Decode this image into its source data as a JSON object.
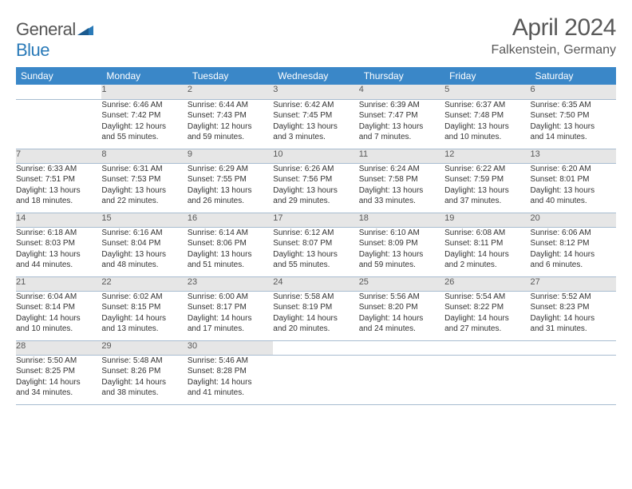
{
  "logo": {
    "text1": "General",
    "text2": "Blue"
  },
  "title": "April 2024",
  "location": "Falkenstein, Germany",
  "colors": {
    "header_bg": "#3a87c8",
    "header_fg": "#ffffff",
    "daynum_bg": "#e6e6e6",
    "border": "#a8bcd0",
    "text": "#333333",
    "title_color": "#595959"
  },
  "weekdays": [
    "Sunday",
    "Monday",
    "Tuesday",
    "Wednesday",
    "Thursday",
    "Friday",
    "Saturday"
  ],
  "weeks": [
    {
      "days": [
        {
          "num": "",
          "lines": [
            "",
            "",
            "",
            ""
          ]
        },
        {
          "num": "1",
          "lines": [
            "Sunrise: 6:46 AM",
            "Sunset: 7:42 PM",
            "Daylight: 12 hours",
            "and 55 minutes."
          ]
        },
        {
          "num": "2",
          "lines": [
            "Sunrise: 6:44 AM",
            "Sunset: 7:43 PM",
            "Daylight: 12 hours",
            "and 59 minutes."
          ]
        },
        {
          "num": "3",
          "lines": [
            "Sunrise: 6:42 AM",
            "Sunset: 7:45 PM",
            "Daylight: 13 hours",
            "and 3 minutes."
          ]
        },
        {
          "num": "4",
          "lines": [
            "Sunrise: 6:39 AM",
            "Sunset: 7:47 PM",
            "Daylight: 13 hours",
            "and 7 minutes."
          ]
        },
        {
          "num": "5",
          "lines": [
            "Sunrise: 6:37 AM",
            "Sunset: 7:48 PM",
            "Daylight: 13 hours",
            "and 10 minutes."
          ]
        },
        {
          "num": "6",
          "lines": [
            "Sunrise: 6:35 AM",
            "Sunset: 7:50 PM",
            "Daylight: 13 hours",
            "and 14 minutes."
          ]
        }
      ]
    },
    {
      "days": [
        {
          "num": "7",
          "lines": [
            "Sunrise: 6:33 AM",
            "Sunset: 7:51 PM",
            "Daylight: 13 hours",
            "and 18 minutes."
          ]
        },
        {
          "num": "8",
          "lines": [
            "Sunrise: 6:31 AM",
            "Sunset: 7:53 PM",
            "Daylight: 13 hours",
            "and 22 minutes."
          ]
        },
        {
          "num": "9",
          "lines": [
            "Sunrise: 6:29 AM",
            "Sunset: 7:55 PM",
            "Daylight: 13 hours",
            "and 26 minutes."
          ]
        },
        {
          "num": "10",
          "lines": [
            "Sunrise: 6:26 AM",
            "Sunset: 7:56 PM",
            "Daylight: 13 hours",
            "and 29 minutes."
          ]
        },
        {
          "num": "11",
          "lines": [
            "Sunrise: 6:24 AM",
            "Sunset: 7:58 PM",
            "Daylight: 13 hours",
            "and 33 minutes."
          ]
        },
        {
          "num": "12",
          "lines": [
            "Sunrise: 6:22 AM",
            "Sunset: 7:59 PM",
            "Daylight: 13 hours",
            "and 37 minutes."
          ]
        },
        {
          "num": "13",
          "lines": [
            "Sunrise: 6:20 AM",
            "Sunset: 8:01 PM",
            "Daylight: 13 hours",
            "and 40 minutes."
          ]
        }
      ]
    },
    {
      "days": [
        {
          "num": "14",
          "lines": [
            "Sunrise: 6:18 AM",
            "Sunset: 8:03 PM",
            "Daylight: 13 hours",
            "and 44 minutes."
          ]
        },
        {
          "num": "15",
          "lines": [
            "Sunrise: 6:16 AM",
            "Sunset: 8:04 PM",
            "Daylight: 13 hours",
            "and 48 minutes."
          ]
        },
        {
          "num": "16",
          "lines": [
            "Sunrise: 6:14 AM",
            "Sunset: 8:06 PM",
            "Daylight: 13 hours",
            "and 51 minutes."
          ]
        },
        {
          "num": "17",
          "lines": [
            "Sunrise: 6:12 AM",
            "Sunset: 8:07 PM",
            "Daylight: 13 hours",
            "and 55 minutes."
          ]
        },
        {
          "num": "18",
          "lines": [
            "Sunrise: 6:10 AM",
            "Sunset: 8:09 PM",
            "Daylight: 13 hours",
            "and 59 minutes."
          ]
        },
        {
          "num": "19",
          "lines": [
            "Sunrise: 6:08 AM",
            "Sunset: 8:11 PM",
            "Daylight: 14 hours",
            "and 2 minutes."
          ]
        },
        {
          "num": "20",
          "lines": [
            "Sunrise: 6:06 AM",
            "Sunset: 8:12 PM",
            "Daylight: 14 hours",
            "and 6 minutes."
          ]
        }
      ]
    },
    {
      "days": [
        {
          "num": "21",
          "lines": [
            "Sunrise: 6:04 AM",
            "Sunset: 8:14 PM",
            "Daylight: 14 hours",
            "and 10 minutes."
          ]
        },
        {
          "num": "22",
          "lines": [
            "Sunrise: 6:02 AM",
            "Sunset: 8:15 PM",
            "Daylight: 14 hours",
            "and 13 minutes."
          ]
        },
        {
          "num": "23",
          "lines": [
            "Sunrise: 6:00 AM",
            "Sunset: 8:17 PM",
            "Daylight: 14 hours",
            "and 17 minutes."
          ]
        },
        {
          "num": "24",
          "lines": [
            "Sunrise: 5:58 AM",
            "Sunset: 8:19 PM",
            "Daylight: 14 hours",
            "and 20 minutes."
          ]
        },
        {
          "num": "25",
          "lines": [
            "Sunrise: 5:56 AM",
            "Sunset: 8:20 PM",
            "Daylight: 14 hours",
            "and 24 minutes."
          ]
        },
        {
          "num": "26",
          "lines": [
            "Sunrise: 5:54 AM",
            "Sunset: 8:22 PM",
            "Daylight: 14 hours",
            "and 27 minutes."
          ]
        },
        {
          "num": "27",
          "lines": [
            "Sunrise: 5:52 AM",
            "Sunset: 8:23 PM",
            "Daylight: 14 hours",
            "and 31 minutes."
          ]
        }
      ]
    },
    {
      "days": [
        {
          "num": "28",
          "lines": [
            "Sunrise: 5:50 AM",
            "Sunset: 8:25 PM",
            "Daylight: 14 hours",
            "and 34 minutes."
          ]
        },
        {
          "num": "29",
          "lines": [
            "Sunrise: 5:48 AM",
            "Sunset: 8:26 PM",
            "Daylight: 14 hours",
            "and 38 minutes."
          ]
        },
        {
          "num": "30",
          "lines": [
            "Sunrise: 5:46 AM",
            "Sunset: 8:28 PM",
            "Daylight: 14 hours",
            "and 41 minutes."
          ]
        },
        {
          "num": "",
          "lines": [
            "",
            "",
            "",
            ""
          ]
        },
        {
          "num": "",
          "lines": [
            "",
            "",
            "",
            ""
          ]
        },
        {
          "num": "",
          "lines": [
            "",
            "",
            "",
            ""
          ]
        },
        {
          "num": "",
          "lines": [
            "",
            "",
            "",
            ""
          ]
        }
      ]
    }
  ]
}
